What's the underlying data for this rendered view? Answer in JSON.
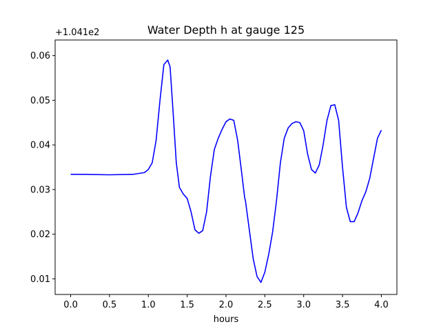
{
  "chart_data": {
    "type": "line",
    "title": "Water Depth h at gauge 125",
    "xlabel": "hours",
    "ylabel": "",
    "y_offset_text": "+1.041e2",
    "xlim": [
      -0.2,
      4.2
    ],
    "ylim": [
      0.0065,
      0.0635
    ],
    "x_ticks": [
      0.0,
      0.5,
      1.0,
      1.5,
      2.0,
      2.5,
      3.0,
      3.5,
      4.0
    ],
    "x_tick_labels": [
      "0.0",
      "0.5",
      "1.0",
      "1.5",
      "2.0",
      "2.5",
      "3.0",
      "3.5",
      "4.0"
    ],
    "y_ticks": [
      0.01,
      0.02,
      0.03,
      0.04,
      0.05,
      0.06
    ],
    "y_tick_labels": [
      "0.01",
      "0.02",
      "0.03",
      "0.04",
      "0.05",
      "0.06"
    ],
    "grid": false,
    "series": [
      {
        "color": "#0000ff",
        "x": [
          0.0,
          0.2,
          0.5,
          0.8,
          0.95,
          1.0,
          1.05,
          1.1,
          1.15,
          1.2,
          1.25,
          1.28,
          1.32,
          1.36,
          1.4,
          1.45,
          1.5,
          1.55,
          1.6,
          1.65,
          1.7,
          1.75,
          1.8,
          1.85,
          1.9,
          1.95,
          2.0,
          2.05,
          2.1,
          2.15,
          2.2,
          2.24,
          2.25,
          2.3,
          2.35,
          2.4,
          2.45,
          2.5,
          2.55,
          2.6,
          2.65,
          2.7,
          2.75,
          2.8,
          2.85,
          2.9,
          2.95,
          3.0,
          3.05,
          3.1,
          3.15,
          3.2,
          3.25,
          3.3,
          3.35,
          3.4,
          3.45,
          3.5,
          3.55,
          3.6,
          3.65,
          3.7,
          3.75,
          3.8,
          3.85,
          3.9,
          3.95,
          4.0
        ],
        "y": [
          0.0334,
          0.0334,
          0.0333,
          0.0334,
          0.0338,
          0.0345,
          0.036,
          0.041,
          0.05,
          0.058,
          0.059,
          0.0575,
          0.047,
          0.036,
          0.0305,
          0.029,
          0.028,
          0.025,
          0.021,
          0.0202,
          0.0208,
          0.025,
          0.033,
          0.039,
          0.0415,
          0.0435,
          0.0452,
          0.0458,
          0.0455,
          0.041,
          0.034,
          0.0282,
          0.0275,
          0.021,
          0.0145,
          0.0105,
          0.0092,
          0.0115,
          0.0155,
          0.0205,
          0.0275,
          0.036,
          0.0415,
          0.0438,
          0.0448,
          0.0452,
          0.045,
          0.0432,
          0.038,
          0.0345,
          0.0337,
          0.0355,
          0.04,
          0.0455,
          0.0488,
          0.049,
          0.0455,
          0.035,
          0.026,
          0.0228,
          0.0228,
          0.0248,
          0.0275,
          0.0295,
          0.0325,
          0.037,
          0.0415,
          0.0433
        ]
      }
    ]
  }
}
